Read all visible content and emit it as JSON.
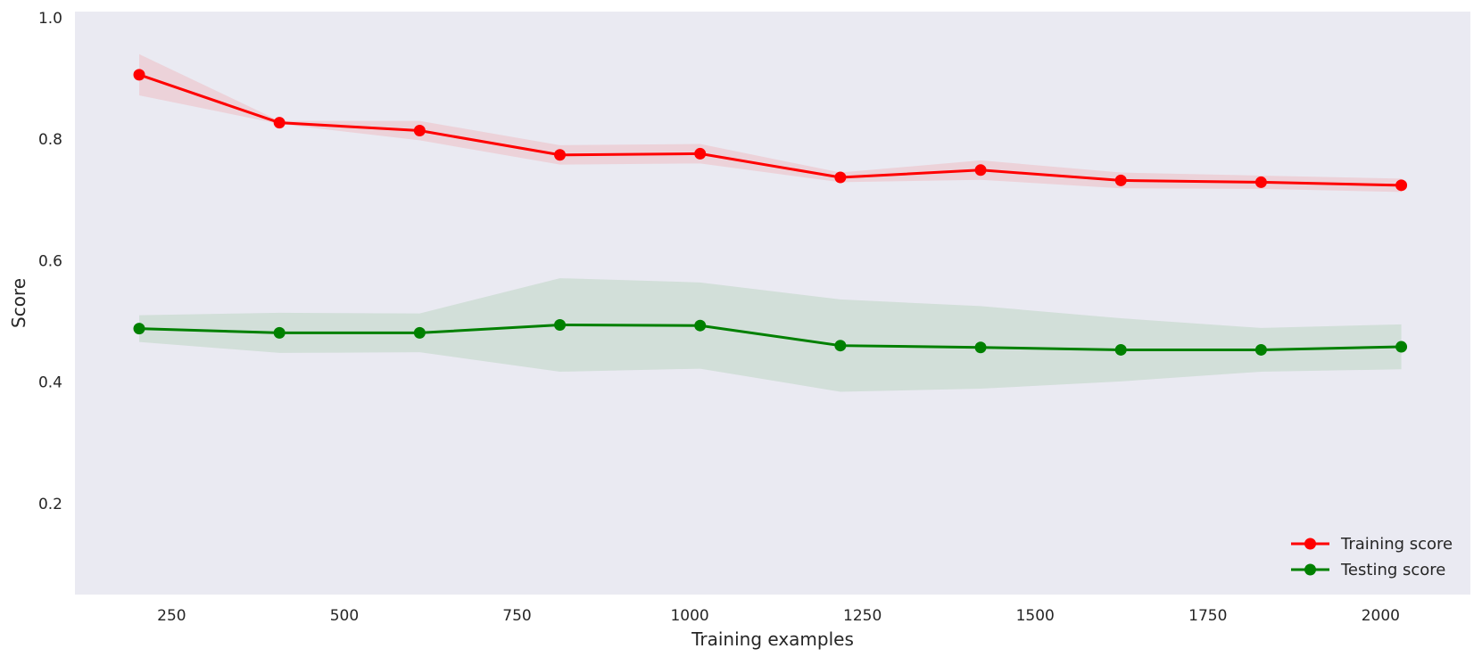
{
  "chart_data": {
    "type": "line",
    "title": "",
    "xlabel": "Training examples",
    "ylabel": "Score",
    "xlim": [
      110,
      2130
    ],
    "ylim": [
      0.05,
      1.01
    ],
    "xticks": [
      250,
      500,
      750,
      1000,
      1250,
      1500,
      1750,
      2000
    ],
    "yticks": [
      0.2,
      0.4,
      0.6,
      0.8,
      1.0
    ],
    "grid": false,
    "legend_position": "lower-right",
    "x": [
      203,
      406,
      609,
      812,
      1015,
      1218,
      1421,
      1624,
      1827,
      2030
    ],
    "series": [
      {
        "name": "Training score",
        "color": "#ff0000",
        "band_color": "#ff0000",
        "values": [
          0.906,
          0.827,
          0.814,
          0.774,
          0.776,
          0.737,
          0.749,
          0.732,
          0.729,
          0.724
        ],
        "upper": [
          0.94,
          0.83,
          0.83,
          0.79,
          0.792,
          0.745,
          0.765,
          0.745,
          0.74,
          0.735
        ],
        "lower": [
          0.872,
          0.825,
          0.798,
          0.758,
          0.76,
          0.729,
          0.733,
          0.719,
          0.718,
          0.713
        ]
      },
      {
        "name": "Testing score",
        "color": "#008000",
        "band_color": "#008000",
        "values": [
          0.488,
          0.481,
          0.481,
          0.494,
          0.493,
          0.46,
          0.457,
          0.453,
          0.453,
          0.458
        ],
        "upper": [
          0.51,
          0.514,
          0.513,
          0.571,
          0.564,
          0.536,
          0.525,
          0.505,
          0.489,
          0.495
        ],
        "lower": [
          0.466,
          0.448,
          0.449,
          0.417,
          0.422,
          0.384,
          0.389,
          0.401,
          0.417,
          0.421
        ]
      }
    ]
  }
}
